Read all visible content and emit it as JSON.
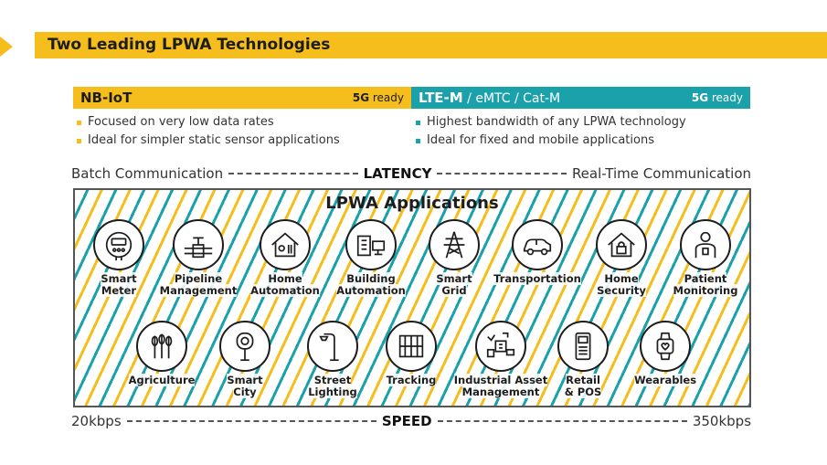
{
  "header": {
    "title": "Two Leading LPWA Technologies"
  },
  "nbiot": {
    "name": "NB-IoT",
    "ready_bold": "5G",
    "ready_text": "ready",
    "bullets": [
      "Focused on very low data rates",
      "Ideal for simpler static sensor applications"
    ]
  },
  "ltem": {
    "name": "LTE-M",
    "sub": "/ eMTC / Cat-M",
    "ready_bold": "5G",
    "ready_text": "ready",
    "bullets": [
      "Highest bandwidth of any LPWA technology",
      "Ideal for fixed and mobile applications"
    ]
  },
  "latency": {
    "left": "Batch Communication",
    "center": "LATENCY",
    "right": "Real-Time Communication"
  },
  "speed": {
    "left": "20kbps",
    "center": "SPEED",
    "right": "350kbps"
  },
  "applications": {
    "title": "LPWA Applications",
    "row1": [
      {
        "label": "Smart\nMeter",
        "icon": "smart-meter-icon"
      },
      {
        "label": "Pipeline\nManagement",
        "icon": "pipeline-icon"
      },
      {
        "label": "Home\nAutomation",
        "icon": "home-automation-icon"
      },
      {
        "label": "Building\nAutomation",
        "icon": "building-icon"
      },
      {
        "label": "Smart\nGrid",
        "icon": "power-tower-icon"
      },
      {
        "label": "Transportation",
        "icon": "car-icon"
      },
      {
        "label": "Home\nSecurity",
        "icon": "home-lock-icon"
      },
      {
        "label": "Patient\nMonitoring",
        "icon": "patient-icon"
      }
    ],
    "row2": [
      {
        "label": "Agriculture",
        "icon": "wheat-icon"
      },
      {
        "label": "Smart\nCity",
        "icon": "parking-meter-icon"
      },
      {
        "label": "Street\nLighting",
        "icon": "street-lamp-icon"
      },
      {
        "label": "Tracking",
        "icon": "tracking-icon"
      },
      {
        "label": "Industrial Asset\nManagement",
        "icon": "industrial-asset-icon"
      },
      {
        "label": "Retail\n& POS",
        "icon": "pos-terminal-icon"
      },
      {
        "label": "Wearables",
        "icon": "smartwatch-icon"
      }
    ]
  },
  "colors": {
    "yellow": "#f6be1c",
    "teal": "#1aa1aa",
    "dark": "#1d1d1d"
  }
}
